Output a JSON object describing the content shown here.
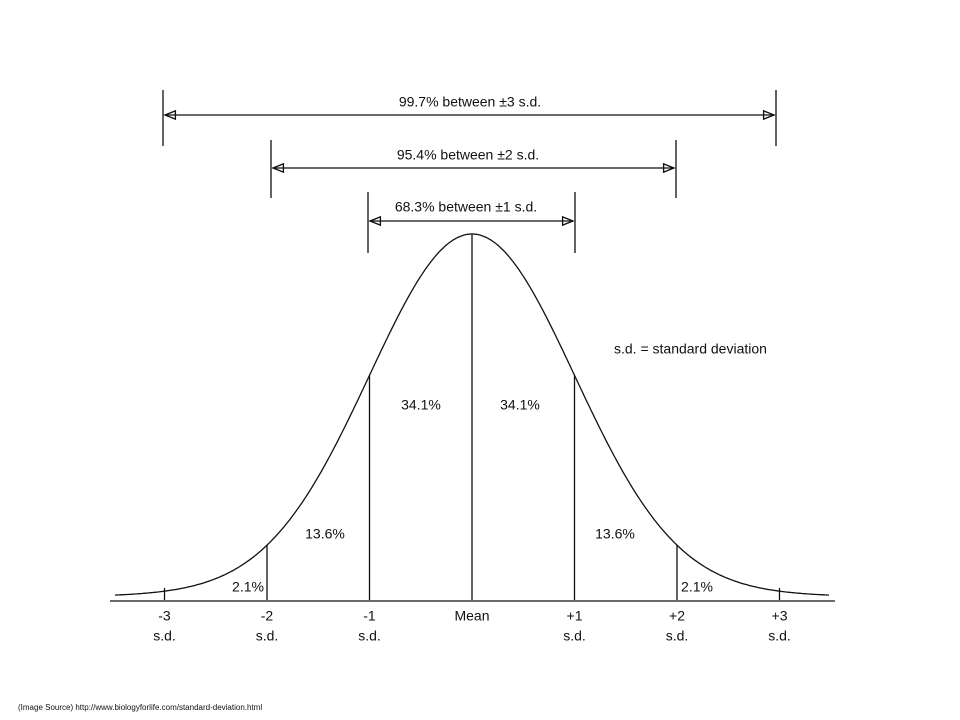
{
  "arrows": [
    {
      "label": "99.7% between  ±3 s.d."
    },
    {
      "label": "95.4% between  ±2 s.d."
    },
    {
      "label": "68.3% between  ±1 s.d."
    }
  ],
  "regions": [
    "2.1%",
    "13.6%",
    "34.1%",
    "34.1%",
    "13.6%",
    "2.1%"
  ],
  "axis_labels": [
    {
      "value": "-3",
      "unit": "s.d."
    },
    {
      "value": "-2",
      "unit": "s.d."
    },
    {
      "value": "-1",
      "unit": "s.d."
    },
    {
      "value": "Mean"
    },
    {
      "value": "+1",
      "unit": "s.d."
    },
    {
      "value": "+2",
      "unit": "s.d."
    },
    {
      "value": "+3",
      "unit": "s.d."
    }
  ],
  "legend": "s.d. = standard deviation",
  "source": "(Image Source) http://www.biologyforlife.com/standard-deviation.html"
}
